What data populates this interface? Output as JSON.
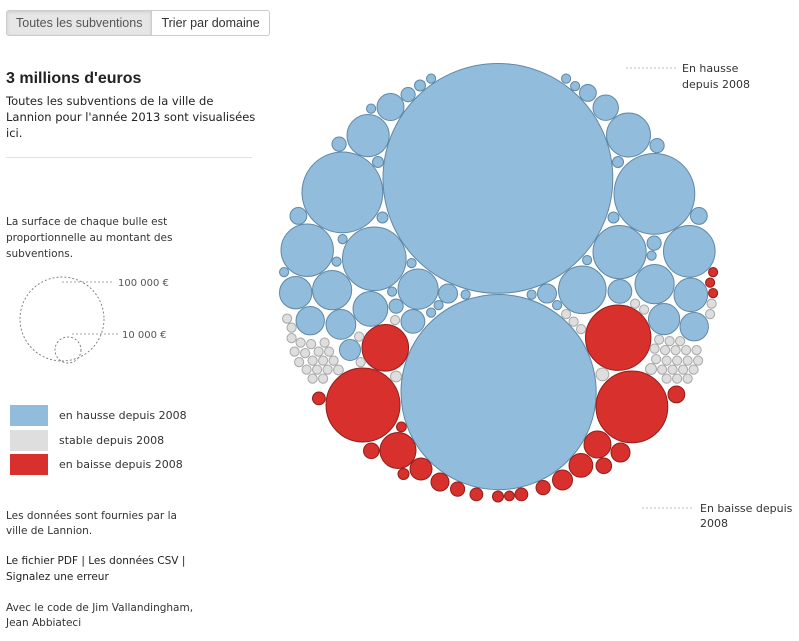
{
  "tabs": [
    {
      "label": "Toutes les subventions",
      "active": true
    },
    {
      "label": "Trier par domaine",
      "active": false
    }
  ],
  "header": {
    "title": "3 millions d'euros",
    "subtitle": "Toutes les subventions de la ville de Lannion pour l'année 2013 sont visualisées ici."
  },
  "size_legend": {
    "note": "La surface de chaque bulle est proportionnelle au montant des subventions.",
    "large_label": "100 000 €",
    "small_label": "10 000 €"
  },
  "colors": {
    "hausse": "#91bcdb",
    "stable": "#dedede",
    "baisse": "#d8302c",
    "hausse_stroke": "#5f88a6",
    "stable_stroke": "#a8a8a8",
    "baisse_stroke": "#8f1e1b"
  },
  "legend": [
    {
      "label": "en hausse depuis 2008",
      "key": "hausse"
    },
    {
      "label": "stable depuis 2008",
      "key": "stable"
    },
    {
      "label": "en baisse depuis 2008",
      "key": "baisse"
    }
  ],
  "footer": {
    "source": "Les données sont fournies par la ville de Lannion.",
    "link_pdf": "Le fichier PDF",
    "link_csv": "Les données CSV",
    "link_error": "Signalez une erreur",
    "credits": "Avec le code de Jim Vallandingham, Jean Abbiateci"
  },
  "callouts": {
    "up": [
      "En hausse",
      "depuis 2008"
    ],
    "down": [
      "En baisse depuis",
      "2008"
    ]
  },
  "chart_data": {
    "type": "bubble",
    "title": "3 millions d'euros",
    "encoding": "bubble area proportional to subsidy amount (€)",
    "reference_amounts": [
      100000,
      10000
    ],
    "groups": [
      {
        "name": "en hausse depuis 2008",
        "key": "hausse"
      },
      {
        "name": "stable depuis 2008",
        "key": "stable"
      },
      {
        "name": "en baisse depuis 2008",
        "key": "baisse"
      }
    ],
    "bubbles": [
      {
        "group": "hausse",
        "amount": 655000
      },
      {
        "group": "hausse",
        "amount": 472000
      },
      {
        "group": "hausse",
        "amount": 81000
      },
      {
        "group": "hausse",
        "amount": 81000
      },
      {
        "group": "hausse",
        "amount": 50000
      },
      {
        "group": "hausse",
        "amount": 35000
      },
      {
        "group": "hausse",
        "amount": 34000
      },
      {
        "group": "hausse",
        "amount": 33000
      },
      {
        "group": "hausse",
        "amount": 28000
      },
      {
        "group": "hausse",
        "amount": 24000
      },
      {
        "group": "hausse",
        "amount": 22000
      },
      {
        "group": "hausse",
        "amount": 20000
      },
      {
        "group": "hausse",
        "amount": 19000
      },
      {
        "group": "hausse",
        "amount": 19000
      },
      {
        "group": "hausse",
        "amount": 15000
      },
      {
        "group": "hausse",
        "amount": 14000
      },
      {
        "group": "hausse",
        "amount": 13000
      },
      {
        "group": "hausse",
        "amount": 12000
      },
      {
        "group": "hausse",
        "amount": 11000
      },
      {
        "group": "hausse",
        "amount": 10000
      },
      {
        "group": "hausse",
        "amount": 10000
      },
      {
        "group": "hausse",
        "amount": 9000
      },
      {
        "group": "hausse",
        "amount": 8000
      },
      {
        "group": "hausse",
        "amount": 7000
      },
      {
        "group": "hausse",
        "amount": 7000
      },
      {
        "group": "hausse",
        "amount": 5500
      },
      {
        "group": "hausse",
        "amount": 4500
      },
      {
        "group": "hausse",
        "amount": 4500
      },
      {
        "group": "hausse",
        "amount": 3500
      },
      {
        "group": "hausse",
        "amount": 3500
      },
      {
        "group": "hausse",
        "amount": 3500
      },
      {
        "group": "hausse",
        "amount": 2500
      },
      {
        "group": "hausse",
        "amount": 2500
      },
      {
        "group": "hausse",
        "amount": 2500
      },
      {
        "group": "hausse",
        "amount": 2500
      },
      {
        "group": "hausse",
        "amount": 2500
      },
      {
        "group": "hausse",
        "amount": 1500
      },
      {
        "group": "hausse",
        "amount": 1500
      },
      {
        "group": "hausse",
        "amount": 1500
      },
      {
        "group": "hausse",
        "amount": 1500
      },
      {
        "group": "hausse",
        "amount": 1500
      },
      {
        "group": "hausse",
        "amount": 1000
      },
      {
        "group": "hausse",
        "amount": 1000
      },
      {
        "group": "hausse",
        "amount": 1000
      },
      {
        "group": "hausse",
        "amount": 1000
      },
      {
        "group": "hausse",
        "amount": 1000
      },
      {
        "group": "hausse",
        "amount": 1000
      },
      {
        "group": "hausse",
        "amount": 800
      },
      {
        "group": "hausse",
        "amount": 800
      },
      {
        "group": "hausse",
        "amount": 800
      },
      {
        "group": "hausse",
        "amount": 800
      },
      {
        "group": "hausse",
        "amount": 600
      },
      {
        "group": "hausse",
        "amount": 600
      },
      {
        "group": "hausse",
        "amount": 600
      },
      {
        "group": "hausse",
        "amount": 500
      },
      {
        "group": "hausse",
        "amount": 500
      },
      {
        "group": "hausse",
        "amount": 400
      },
      {
        "group": "stable",
        "amount": 2000
      },
      {
        "group": "stable",
        "amount": 1500
      },
      {
        "group": "stable",
        "amount": 1500
      },
      {
        "group": "stable",
        "amount": 1200
      },
      {
        "group": "stable",
        "amount": 1000
      },
      {
        "group": "stable",
        "amount": 1000
      },
      {
        "group": "stable",
        "amount": 800
      },
      {
        "group": "stable",
        "amount": 800
      },
      {
        "group": "stable",
        "amount": 800
      },
      {
        "group": "stable",
        "amount": 700
      },
      {
        "group": "stable",
        "amount": 700
      },
      {
        "group": "stable",
        "amount": 700
      },
      {
        "group": "stable",
        "amount": 600
      },
      {
        "group": "stable",
        "amount": 600
      },
      {
        "group": "stable",
        "amount": 600
      },
      {
        "group": "stable",
        "amount": 600
      },
      {
        "group": "stable",
        "amount": 500
      },
      {
        "group": "stable",
        "amount": 500
      },
      {
        "group": "stable",
        "amount": 500
      },
      {
        "group": "stable",
        "amount": 500
      },
      {
        "group": "stable",
        "amount": 500
      },
      {
        "group": "stable",
        "amount": 400
      },
      {
        "group": "stable",
        "amount": 400
      },
      {
        "group": "stable",
        "amount": 400
      },
      {
        "group": "stable",
        "amount": 400
      },
      {
        "group": "stable",
        "amount": 400
      },
      {
        "group": "stable",
        "amount": 400
      },
      {
        "group": "stable",
        "amount": 300
      },
      {
        "group": "stable",
        "amount": 300
      },
      {
        "group": "stable",
        "amount": 300
      },
      {
        "group": "stable",
        "amount": 300
      },
      {
        "group": "stable",
        "amount": 300
      },
      {
        "group": "stable",
        "amount": 300
      },
      {
        "group": "stable",
        "amount": 300
      },
      {
        "group": "stable",
        "amount": 250
      },
      {
        "group": "stable",
        "amount": 250
      },
      {
        "group": "stable",
        "amount": 250
      },
      {
        "group": "stable",
        "amount": 250
      },
      {
        "group": "stable",
        "amount": 250
      },
      {
        "group": "stable",
        "amount": 250
      },
      {
        "group": "stable",
        "amount": 200
      },
      {
        "group": "stable",
        "amount": 200
      },
      {
        "group": "stable",
        "amount": 200
      },
      {
        "group": "stable",
        "amount": 200
      },
      {
        "group": "stable",
        "amount": 200
      },
      {
        "group": "stable",
        "amount": 200
      },
      {
        "group": "stable",
        "amount": 200
      },
      {
        "group": "stable",
        "amount": 150
      },
      {
        "group": "stable",
        "amount": 150
      },
      {
        "group": "stable",
        "amount": 150
      },
      {
        "group": "stable",
        "amount": 150
      },
      {
        "group": "stable",
        "amount": 150
      },
      {
        "group": "stable",
        "amount": 150
      },
      {
        "group": "baisse",
        "amount": 68000
      },
      {
        "group": "baisse",
        "amount": 64000
      },
      {
        "group": "baisse",
        "amount": 53000
      },
      {
        "group": "baisse",
        "amount": 27000
      },
      {
        "group": "baisse",
        "amount": 16000
      },
      {
        "group": "baisse",
        "amount": 9000
      },
      {
        "group": "baisse",
        "amount": 7000
      },
      {
        "group": "baisse",
        "amount": 6000
      },
      {
        "group": "baisse",
        "amount": 5000
      },
      {
        "group": "baisse",
        "amount": 4500
      },
      {
        "group": "baisse",
        "amount": 4000
      },
      {
        "group": "baisse",
        "amount": 3500
      },
      {
        "group": "baisse",
        "amount": 3000
      },
      {
        "group": "baisse",
        "amount": 3000
      },
      {
        "group": "baisse",
        "amount": 2500
      },
      {
        "group": "baisse",
        "amount": 2500
      },
      {
        "group": "baisse",
        "amount": 2000
      },
      {
        "group": "baisse",
        "amount": 2000
      },
      {
        "group": "baisse",
        "amount": 2000
      },
      {
        "group": "baisse",
        "amount": 1500
      },
      {
        "group": "baisse",
        "amount": 1500
      },
      {
        "group": "baisse",
        "amount": 1200
      },
      {
        "group": "baisse",
        "amount": 1200
      },
      {
        "group": "baisse",
        "amount": 1000
      },
      {
        "group": "baisse",
        "amount": 1000
      },
      {
        "group": "baisse",
        "amount": 800
      },
      {
        "group": "baisse",
        "amount": 800
      },
      {
        "group": "baisse",
        "amount": 800
      },
      {
        "group": "baisse",
        "amount": 600
      },
      {
        "group": "baisse",
        "amount": 600
      },
      {
        "group": "baisse",
        "amount": 500
      },
      {
        "group": "baisse",
        "amount": 500
      },
      {
        "group": "baisse",
        "amount": 500
      },
      {
        "group": "baisse",
        "amount": 400
      },
      {
        "group": "baisse",
        "amount": 400
      }
    ]
  }
}
